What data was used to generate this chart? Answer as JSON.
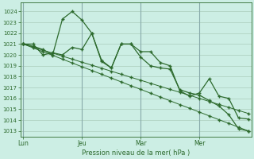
{
  "background_color": "#cceee4",
  "grid_color": "#aaccbb",
  "line_color": "#2d6a2d",
  "title": "Pression niveau de la mer( hPa )",
  "ylim": [
    1012.5,
    1024.8
  ],
  "yticks": [
    1013,
    1014,
    1015,
    1016,
    1017,
    1018,
    1019,
    1020,
    1021,
    1022,
    1023,
    1024
  ],
  "xlim": [
    -0.3,
    23.3
  ],
  "xtick_positions": [
    0,
    6,
    12,
    18
  ],
  "xtick_labels": [
    "Lun",
    "Jeu",
    "Mar",
    "Mer"
  ],
  "vline_positions": [
    0,
    6,
    12,
    18
  ],
  "n_points": 24,
  "series_zigzag1": [
    1021.0,
    1020.8,
    1020.5,
    1020.0,
    1023.3,
    1024.0,
    1023.2,
    1022.0,
    1019.4,
    1018.8,
    1021.0,
    1021.0,
    1019.8,
    1019.0,
    1018.8,
    1018.7,
    1016.8,
    1016.5,
    1016.3,
    1015.8,
    1015.3,
    1014.5,
    1013.2,
    1013.0
  ],
  "series_zigzag2": [
    1021.0,
    1021.0,
    1020.0,
    1020.2,
    1020.0,
    1020.7,
    1020.5,
    1022.0,
    1019.5,
    1018.8,
    1021.0,
    1021.0,
    1020.3,
    1020.3,
    1019.3,
    1019.0,
    1016.7,
    1016.2,
    1016.5,
    1017.8,
    1016.2,
    1016.0,
    1014.2,
    1014.1
  ],
  "series_trend1": [
    1021.0,
    1020.72,
    1020.44,
    1020.17,
    1019.89,
    1019.61,
    1019.33,
    1019.06,
    1018.78,
    1018.5,
    1018.22,
    1017.94,
    1017.67,
    1017.39,
    1017.11,
    1016.83,
    1016.56,
    1016.28,
    1016.0,
    1015.72,
    1015.44,
    1015.17,
    1014.89,
    1014.61
  ],
  "series_trend2": [
    1021.0,
    1020.65,
    1020.3,
    1019.96,
    1019.61,
    1019.26,
    1018.91,
    1018.57,
    1018.22,
    1017.87,
    1017.52,
    1017.17,
    1016.83,
    1016.48,
    1016.13,
    1015.78,
    1015.43,
    1015.09,
    1014.74,
    1014.39,
    1014.04,
    1013.7,
    1013.35,
    1013.0
  ]
}
